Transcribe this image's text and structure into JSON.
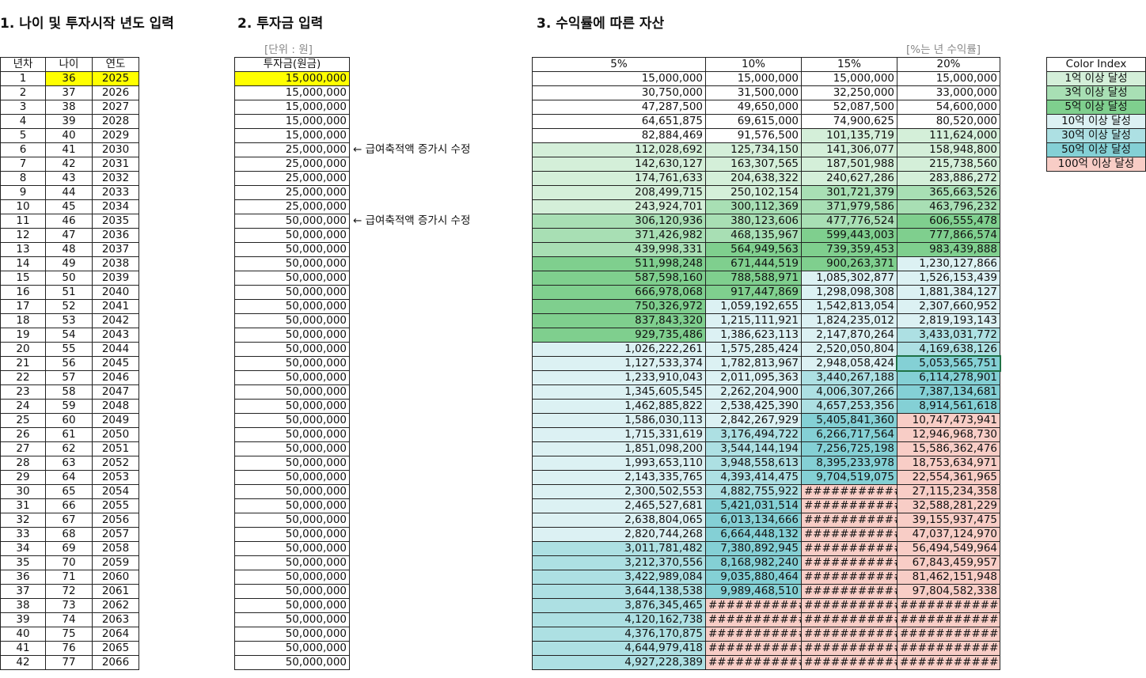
{
  "titles": [
    "1. 나이 및 투자시작 년도 입력",
    "2. 투자금 입력",
    "3. 수익률에 따른 자산"
  ],
  "age_table": {
    "headers": [
      "년차",
      "나이",
      "연도"
    ],
    "rows": [
      [
        1,
        36,
        2025
      ],
      [
        2,
        37,
        2026
      ],
      [
        3,
        38,
        2027
      ],
      [
        4,
        39,
        2028
      ],
      [
        5,
        40,
        2029
      ],
      [
        6,
        41,
        2030
      ],
      [
        7,
        42,
        2031
      ],
      [
        8,
        43,
        2032
      ],
      [
        9,
        44,
        2033
      ],
      [
        10,
        45,
        2034
      ],
      [
        11,
        46,
        2035
      ],
      [
        12,
        47,
        2036
      ],
      [
        13,
        48,
        2037
      ],
      [
        14,
        49,
        2038
      ],
      [
        15,
        50,
        2039
      ],
      [
        16,
        51,
        2040
      ],
      [
        17,
        52,
        2041
      ],
      [
        18,
        53,
        2042
      ],
      [
        19,
        54,
        2043
      ],
      [
        20,
        55,
        2044
      ],
      [
        21,
        56,
        2045
      ],
      [
        22,
        57,
        2046
      ],
      [
        23,
        58,
        2047
      ],
      [
        24,
        59,
        2048
      ],
      [
        25,
        60,
        2049
      ],
      [
        26,
        61,
        2050
      ],
      [
        27,
        62,
        2051
      ],
      [
        28,
        63,
        2052
      ],
      [
        29,
        64,
        2053
      ],
      [
        30,
        65,
        2054
      ],
      [
        31,
        66,
        2055
      ],
      [
        32,
        67,
        2056
      ],
      [
        33,
        68,
        2057
      ],
      [
        34,
        69,
        2058
      ],
      [
        35,
        70,
        2059
      ],
      [
        36,
        71,
        2060
      ],
      [
        37,
        72,
        2061
      ],
      [
        38,
        73,
        2062
      ],
      [
        39,
        74,
        2063
      ],
      [
        40,
        75,
        2064
      ],
      [
        41,
        76,
        2065
      ],
      [
        42,
        77,
        2066
      ]
    ]
  },
  "investment_table": {
    "unit_note": "[단위 : 원]",
    "header": "투자금(원금)",
    "rows": [
      [
        "15,000,000"
      ],
      [
        "15,000,000"
      ],
      [
        "15,000,000"
      ],
      [
        "15,000,000"
      ],
      [
        "15,000,000"
      ],
      [
        "25,000,000",
        "← 급여축적액 증가시 수정"
      ],
      [
        "25,000,000"
      ],
      [
        "25,000,000"
      ],
      [
        "25,000,000"
      ],
      [
        "25,000,000"
      ],
      [
        "50,000,000",
        "← 급여축적액 증가시 수정"
      ],
      [
        "50,000,000"
      ],
      [
        "50,000,000"
      ],
      [
        "50,000,000"
      ],
      [
        "50,000,000"
      ],
      [
        "50,000,000"
      ],
      [
        "50,000,000"
      ],
      [
        "50,000,000"
      ],
      [
        "50,000,000"
      ],
      [
        "50,000,000"
      ],
      [
        "50,000,000"
      ],
      [
        "50,000,000"
      ],
      [
        "50,000,000"
      ],
      [
        "50,000,000"
      ],
      [
        "50,000,000"
      ],
      [
        "50,000,000"
      ],
      [
        "50,000,000"
      ],
      [
        "50,000,000"
      ],
      [
        "50,000,000"
      ],
      [
        "50,000,000"
      ],
      [
        "50,000,000"
      ],
      [
        "50,000,000"
      ],
      [
        "50,000,000"
      ],
      [
        "50,000,000"
      ],
      [
        "50,000,000"
      ],
      [
        "50,000,000"
      ],
      [
        "50,000,000"
      ],
      [
        "50,000,000"
      ],
      [
        "50,000,000"
      ],
      [
        "50,000,000"
      ],
      [
        "50,000,000"
      ],
      [
        "50,000,000"
      ]
    ]
  },
  "returns_table": {
    "rate_note": "[%는 년 수익률]",
    "headers": [
      "5%",
      "10%",
      "15%",
      "20%"
    ],
    "rows": [
      [
        "15,000,000",
        "15,000,000",
        "15,000,000",
        "15,000,000"
      ],
      [
        "30,750,000",
        "31,500,000",
        "32,250,000",
        "33,000,000"
      ],
      [
        "47,287,500",
        "49,650,000",
        "52,087,500",
        "54,600,000"
      ],
      [
        "64,651,875",
        "69,615,000",
        "74,900,625",
        "80,520,000"
      ],
      [
        "82,884,469",
        "91,576,500",
        "101,135,719",
        "111,624,000"
      ],
      [
        "112,028,692",
        "125,734,150",
        "141,306,077",
        "158,948,800"
      ],
      [
        "142,630,127",
        "163,307,565",
        "187,501,988",
        "215,738,560"
      ],
      [
        "174,761,633",
        "204,638,322",
        "240,627,286",
        "283,886,272"
      ],
      [
        "208,499,715",
        "250,102,154",
        "301,721,379",
        "365,663,526"
      ],
      [
        "243,924,701",
        "300,112,369",
        "371,979,586",
        "463,796,232"
      ],
      [
        "306,120,936",
        "380,123,606",
        "477,776,524",
        "606,555,478"
      ],
      [
        "371,426,982",
        "468,135,967",
        "599,443,003",
        "777,866,574"
      ],
      [
        "439,998,331",
        "564,949,563",
        "739,359,453",
        "983,439,888"
      ],
      [
        "511,998,248",
        "671,444,519",
        "900,263,371",
        "1,230,127,866"
      ],
      [
        "587,598,160",
        "788,588,971",
        "1,085,302,877",
        "1,526,153,439"
      ],
      [
        "666,978,068",
        "917,447,869",
        "1,298,098,308",
        "1,881,384,127"
      ],
      [
        "750,326,972",
        "1,059,192,655",
        "1,542,813,054",
        "2,307,660,952"
      ],
      [
        "837,843,320",
        "1,215,111,921",
        "1,824,235,012",
        "2,819,193,143"
      ],
      [
        "929,735,486",
        "1,386,623,113",
        "2,147,870,264",
        "3,433,031,772"
      ],
      [
        "1,026,222,261",
        "1,575,285,424",
        "2,520,050,804",
        "4,169,638,126"
      ],
      [
        "1,127,533,374",
        "1,782,813,967",
        "2,948,058,424",
        "5,053,565,751"
      ],
      [
        "1,233,910,043",
        "2,011,095,363",
        "3,440,267,188",
        "6,114,278,901"
      ],
      [
        "1,345,605,545",
        "2,262,204,900",
        "4,006,307,266",
        "7,387,134,681"
      ],
      [
        "1,462,885,822",
        "2,538,425,390",
        "4,657,253,356",
        "8,914,561,618"
      ],
      [
        "1,586,030,113",
        "2,842,267,929",
        "5,405,841,360",
        "10,747,473,941"
      ],
      [
        "1,715,331,619",
        "3,176,494,722",
        "6,266,717,564",
        "12,946,968,730"
      ],
      [
        "1,851,098,200",
        "3,544,144,194",
        "7,256,725,198",
        "15,586,362,476"
      ],
      [
        "1,993,653,110",
        "3,948,558,613",
        "8,395,233,978",
        "18,753,634,971"
      ],
      [
        "2,143,335,765",
        "4,393,414,475",
        "9,704,519,075",
        "22,554,361,965"
      ],
      [
        "2,300,502,553",
        "4,882,755,922",
        "###########",
        "27,115,234,358"
      ],
      [
        "2,465,527,681",
        "5,421,031,514",
        "###########",
        "32,588,281,229"
      ],
      [
        "2,638,804,065",
        "6,013,134,666",
        "###########",
        "39,155,937,475"
      ],
      [
        "2,820,744,268",
        "6,664,448,132",
        "###########",
        "47,037,124,970"
      ],
      [
        "3,011,781,482",
        "7,380,892,945",
        "###########",
        "56,494,549,964"
      ],
      [
        "3,212,370,556",
        "8,168,982,240",
        "###########",
        "67,843,459,957"
      ],
      [
        "3,422,989,084",
        "9,035,880,464",
        "###########",
        "81,462,151,948"
      ],
      [
        "3,644,138,538",
        "9,989,468,510",
        "###########",
        "97,804,582,338"
      ],
      [
        "3,876,345,465",
        "###########",
        "###########",
        "###########"
      ],
      [
        "4,120,162,738",
        "###########",
        "###########",
        "###########"
      ],
      [
        "4,376,170,875",
        "###########",
        "###########",
        "###########"
      ],
      [
        "4,644,979,418",
        "###########",
        "###########",
        "###########"
      ],
      [
        "4,927,228,389",
        "###########",
        "###########",
        "###########"
      ]
    ]
  },
  "color_index": {
    "title": "Color Index",
    "items": [
      {
        "label": "1억 이상 달성",
        "color": "#d4efd9"
      },
      {
        "label": "3억 이상 달성",
        "color": "#a8dfb4"
      },
      {
        "label": "5억 이상 달성",
        "color": "#7fcf8e"
      },
      {
        "label": "10억 이상 달성",
        "color": "#dcf1f3"
      },
      {
        "label": "30억 이상 달성",
        "color": "#ade0e3"
      },
      {
        "label": "50억 이상 달성",
        "color": "#84d0d5"
      },
      {
        "label": "100억 이상 달성",
        "color": "#f8cdc6"
      }
    ]
  }
}
